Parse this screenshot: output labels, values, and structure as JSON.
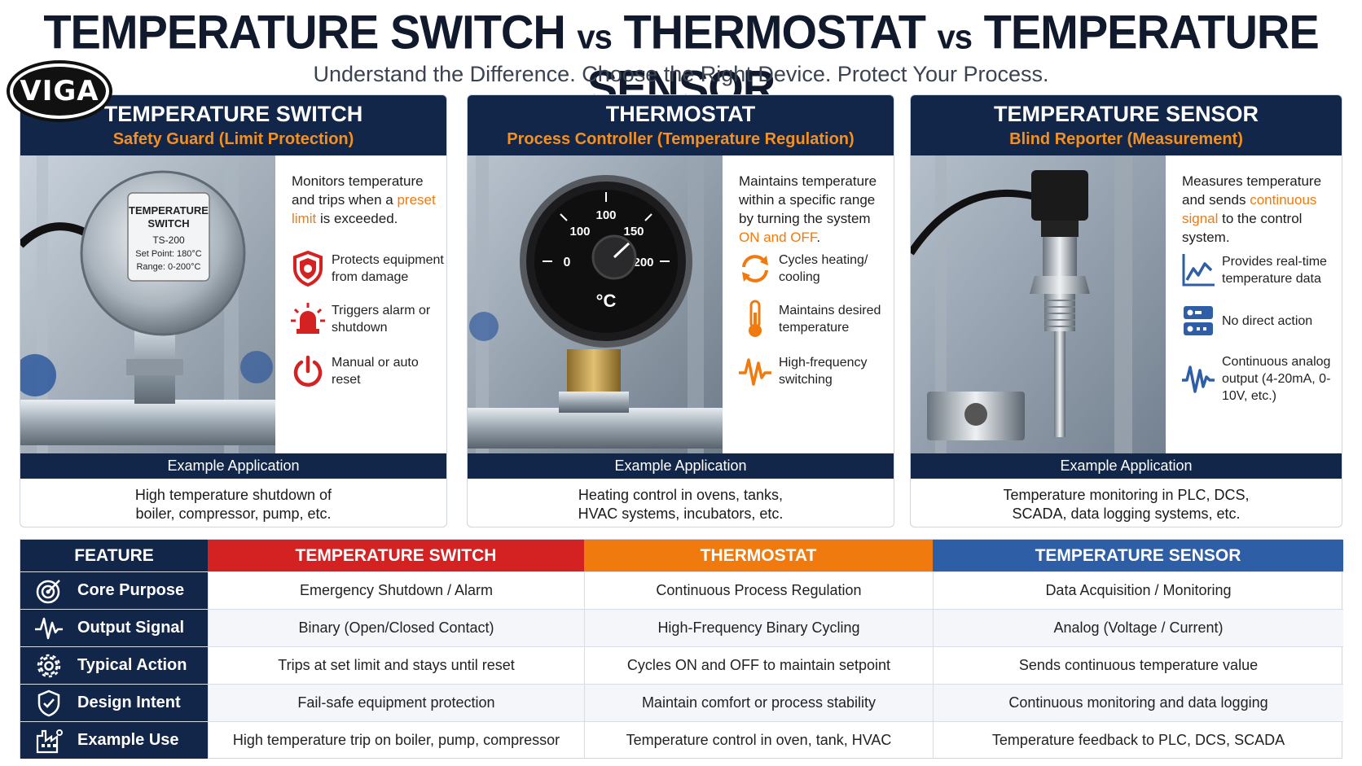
{
  "header": {
    "title_part1": "TEMPERATURE SWITCH",
    "vs1": "vs",
    "title_part2": "THERMOSTAT",
    "vs2": "vs",
    "title_part3": "TEMPERATURE SENSOR",
    "subtitle": "Understand the Difference. Choose the Right Device. Protect Your Process.",
    "logo": "VIGA"
  },
  "colors": {
    "navy": "#12264a",
    "orange": "#f39020",
    "switch_red": "#d42222",
    "thermostat_orange": "#f07a0e",
    "sensor_blue": "#2e5ea6"
  },
  "cards": [
    {
      "title": "TEMPERATURE SWITCH",
      "subtitle": "Safety Guard (Limit Protection)",
      "image_label": {
        "line1": "TEMPERATURE",
        "line2": "SWITCH",
        "model": "TS-200",
        "setpoint": "Set Point: 180°C",
        "range": "Range: 0-200°C"
      },
      "desc_pre": "Monitors temperature and trips when a ",
      "desc_hl": "preset limit",
      "desc_post": " is exceeded.",
      "features": [
        {
          "icon": "shield-icon",
          "text": "Protects equipment from damage"
        },
        {
          "icon": "alarm-light-icon",
          "text": "Triggers alarm or shutdown"
        },
        {
          "icon": "power-icon",
          "text": "Manual or auto reset"
        }
      ],
      "example_label": "Example Application",
      "example_text_1": "High temperature shutdown of",
      "example_text_2": "boiler, compressor, pump, etc."
    },
    {
      "title": "THERMOSTAT",
      "subtitle": "Process Controller (Temperature Regulation)",
      "image_label": {
        "t0": "0",
        "t100a": "100",
        "t100b": "100",
        "t150": "150",
        "t200": "200",
        "unit": "°C"
      },
      "desc_pre": "Maintains temperature within a specific range by turning the system ",
      "desc_hl": "ON and OFF",
      "desc_post": ".",
      "features": [
        {
          "icon": "cycle-arrows-icon",
          "text": "Cycles heating/ cooling"
        },
        {
          "icon": "thermometer-icon",
          "text": "Maintains desired temperature"
        },
        {
          "icon": "waveform-icon",
          "text": "High-frequency switching"
        }
      ],
      "example_label": "Example Application",
      "example_text_1": "Heating control in ovens, tanks,",
      "example_text_2": "HVAC systems, incubators, etc."
    },
    {
      "title": "TEMPERATURE SENSOR",
      "subtitle": "Blind Reporter (Measurement)",
      "desc_pre": "Measures temperature and sends ",
      "desc_hl": "continuous signal",
      "desc_post": " to the control system.",
      "features": [
        {
          "icon": "line-chart-icon",
          "text": "Provides real-time temperature data"
        },
        {
          "icon": "toggle-switches-icon",
          "text": "No direct action"
        },
        {
          "icon": "analog-wave-icon",
          "text": "Continuous analog output (4-20mA, 0-10V, etc.)"
        }
      ],
      "example_label": "Example Application",
      "example_text_1": "Temperature monitoring in PLC, DCS,",
      "example_text_2": "SCADA, data logging systems, etc."
    }
  ],
  "table": {
    "headers": [
      "FEATURE",
      "TEMPERATURE SWITCH",
      "THERMOSTAT",
      "TEMPERATURE SENSOR"
    ],
    "rows": [
      {
        "icon": "target-icon",
        "label": "Core Purpose",
        "cells": [
          "Emergency Shutdown / Alarm",
          "Continuous Process Regulation",
          "Data Acquisition / Monitoring"
        ]
      },
      {
        "icon": "pulse-icon",
        "label": "Output Signal",
        "cells": [
          "Binary (Open/Closed Contact)",
          "High-Frequency Binary Cycling",
          "Analog (Voltage / Current)"
        ]
      },
      {
        "icon": "gear-icon",
        "label": "Typical Action",
        "cells": [
          "Trips at set limit and stays until reset",
          "Cycles ON and OFF to maintain setpoint",
          "Sends continuous temperature value"
        ]
      },
      {
        "icon": "shield-check-icon",
        "label": "Design Intent",
        "cells": [
          "Fail-safe equipment protection",
          "Maintain comfort or process stability",
          "Continuous monitoring and data logging"
        ]
      },
      {
        "icon": "factory-icon",
        "label": "Example Use",
        "cells": [
          "High temperature trip on boiler, pump, compressor",
          "Temperature control in oven, tank, HVAC",
          "Temperature feedback to PLC, DCS, SCADA"
        ]
      }
    ]
  }
}
